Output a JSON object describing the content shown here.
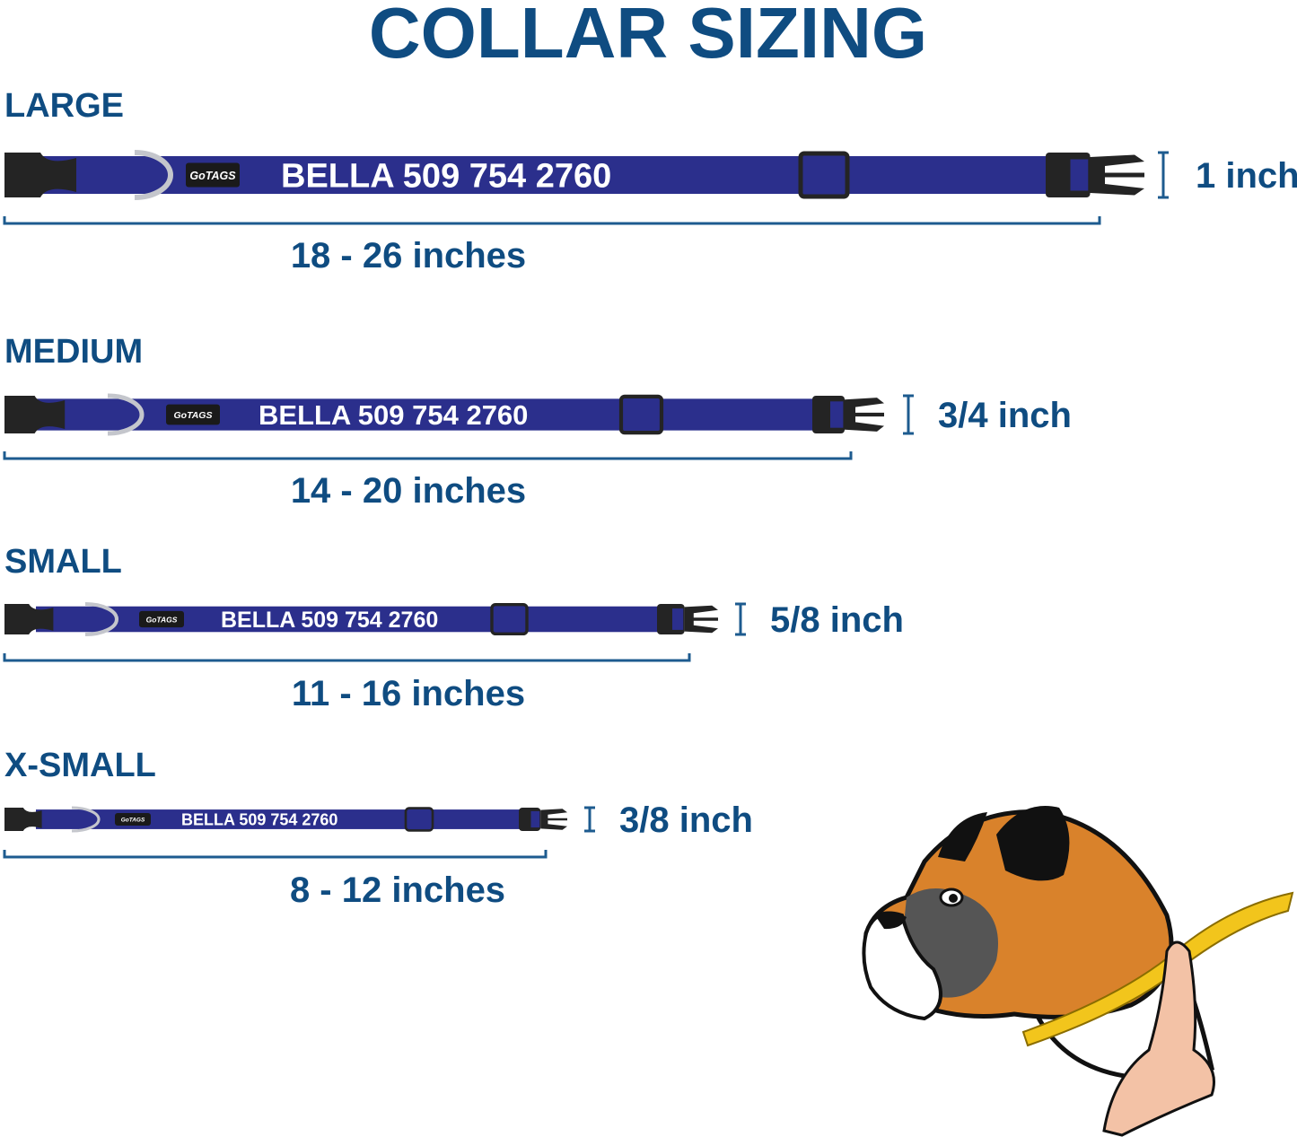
{
  "title": "COLLAR SIZING",
  "colors": {
    "text": "#0f4c81",
    "collar": "#2b2f8c",
    "buckle": "#242424",
    "ring": "#c4c6cc",
    "measure_line": "#1d5b8f",
    "dog_fur": "#d9822b"
  },
  "sizes": [
    {
      "name": "LARGE",
      "collar_text": "BELLA 509 754 2760",
      "logo": "GoTAGS",
      "length": "18 - 26 inches",
      "width": "1 inch"
    },
    {
      "name": "MEDIUM",
      "collar_text": "BELLA 509 754 2760",
      "logo": "GoTAGS",
      "length": "14 - 20 inches",
      "width": "3/4 inch"
    },
    {
      "name": "SMALL",
      "collar_text": "BELLA 509 754 2760",
      "logo": "GoTAGS",
      "length": "11 - 16 inches",
      "width": "5/8 inch"
    },
    {
      "name": "X-SMALL",
      "collar_text": "BELLA 509 754 2760",
      "logo": "GoTAGS",
      "length": "8 - 12 inches",
      "width": "3/8 inch"
    }
  ],
  "illustration": {
    "icon": "boxer-dog-neck-measuring-tape-icon"
  }
}
